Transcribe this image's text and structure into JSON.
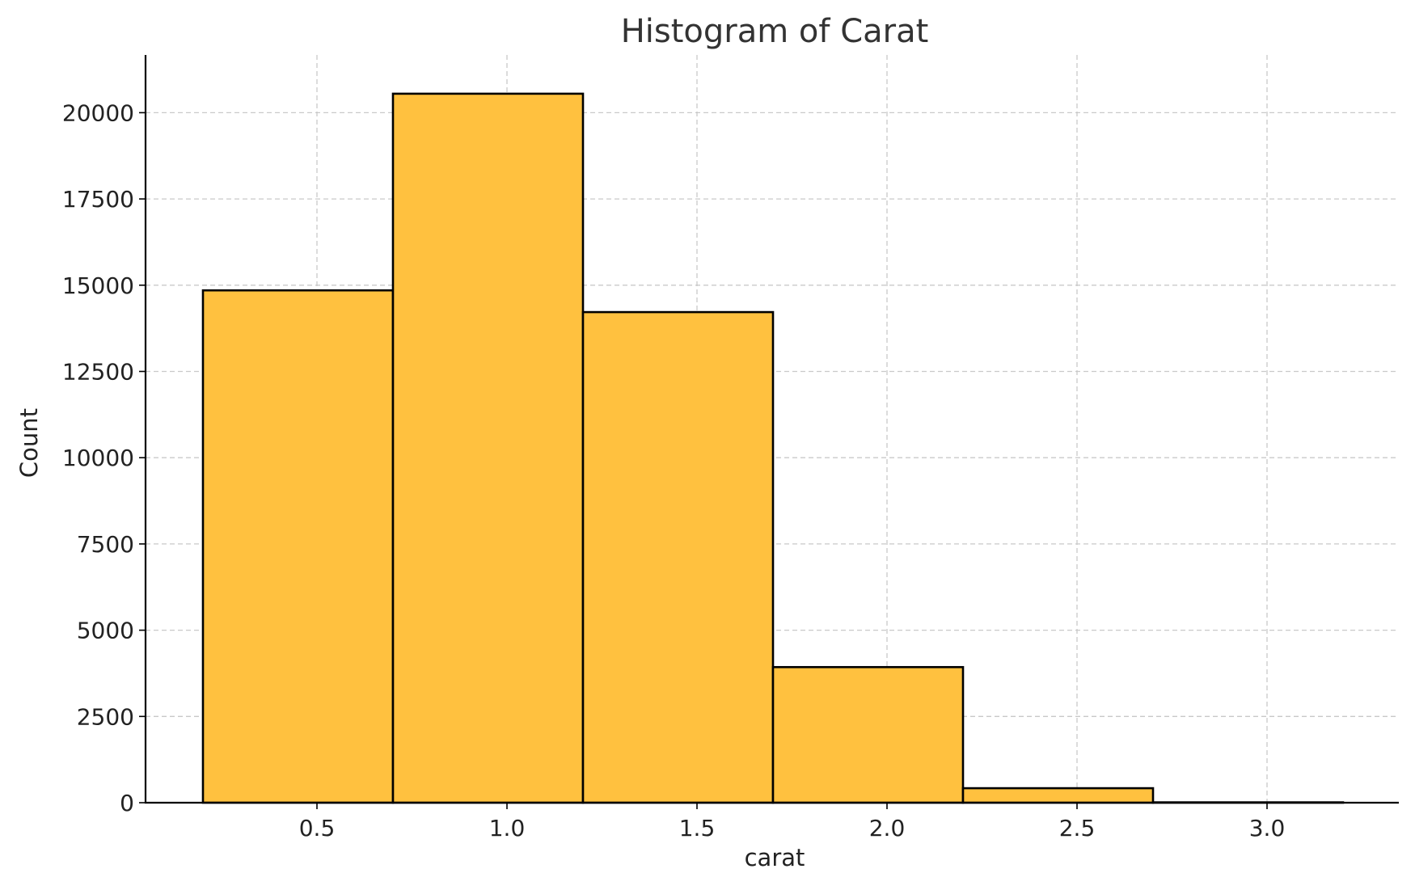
{
  "chart_data": {
    "type": "bar",
    "title": "Histogram of Carat",
    "xlabel": "carat",
    "ylabel": "Count",
    "bin_edges": [
      0.2,
      0.7,
      1.2,
      1.7,
      2.2,
      2.7,
      3.2
    ],
    "values": [
      14850,
      20550,
      14220,
      3930,
      420,
      10
    ],
    "xlim": [
      0.2,
      3.2
    ],
    "ylim": [
      0,
      21500
    ],
    "xticks": [
      0.5,
      1.0,
      1.5,
      2.0,
      2.5,
      3.0
    ],
    "xtick_labels": [
      "0.5",
      "1.0",
      "1.5",
      "2.0",
      "2.5",
      "3.0"
    ],
    "yticks": [
      0,
      2500,
      5000,
      7500,
      10000,
      12500,
      15000,
      17500,
      20000
    ],
    "ytick_labels": [
      "0",
      "2500",
      "5000",
      "7500",
      "10000",
      "12500",
      "15000",
      "17500",
      "20000"
    ],
    "grid": true,
    "bar_color": "#FFC13F",
    "edge_color": "#000000",
    "grid_color": "#C9C9C9",
    "text_color": "#222222"
  }
}
